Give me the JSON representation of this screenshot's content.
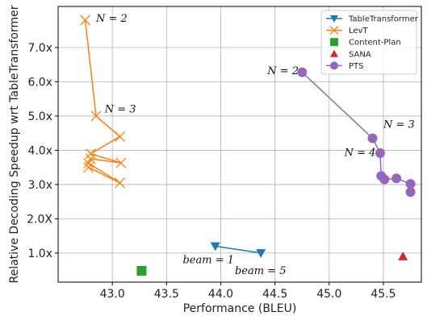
{
  "chart_data": {
    "type": "scatter",
    "xlabel": "Performance (BLEU)",
    "ylabel": "Relative Decoding Speedup wrt TableTransformer",
    "xlim": [
      42.5,
      45.85
    ],
    "ylim": [
      0.15,
      8.2
    ],
    "xticks": [
      {
        "value": 43.0,
        "label": "43.0"
      },
      {
        "value": 43.5,
        "label": "43.5"
      },
      {
        "value": 44.0,
        "label": "44.0"
      },
      {
        "value": 44.5,
        "label": "44.5"
      },
      {
        "value": 45.0,
        "label": "45.0"
      },
      {
        "value": 45.5,
        "label": "45.5"
      }
    ],
    "yticks": [
      {
        "value": 1.0,
        "label": "1.0x"
      },
      {
        "value": 2.0,
        "label": "2.0X"
      },
      {
        "value": 3.0,
        "label": "3.0x"
      },
      {
        "value": 4.0,
        "label": "4.0x"
      },
      {
        "value": 5.0,
        "label": "5.0x"
      },
      {
        "value": 6.0,
        "label": "6.0x"
      },
      {
        "value": 7.0,
        "label": "7.0x"
      }
    ],
    "grid": true,
    "legend_position": "top-right",
    "series": [
      {
        "name": "TableTransformer",
        "marker": "triangle-down",
        "color": "#1f77b4",
        "connected": true,
        "points": [
          [
            43.95,
            1.2
          ],
          [
            44.37,
            1.0
          ]
        ]
      },
      {
        "name": "LevT",
        "marker": "x",
        "color": "#ff7f0e",
        "connected": true,
        "points": [
          [
            42.75,
            7.8
          ],
          [
            42.85,
            5.0
          ],
          [
            43.07,
            4.4
          ],
          [
            42.8,
            3.9
          ],
          [
            43.08,
            3.63
          ],
          [
            42.8,
            3.75
          ],
          [
            42.78,
            3.62
          ],
          [
            43.07,
            3.05
          ],
          [
            42.78,
            3.5
          ]
        ]
      },
      {
        "name": "Content-Plan",
        "marker": "square",
        "color": "#2ca02c",
        "connected": false,
        "points": [
          [
            43.27,
            0.48
          ]
        ]
      },
      {
        "name": "SANA",
        "marker": "triangle-up",
        "color": "#d62728",
        "connected": false,
        "points": [
          [
            45.68,
            0.9
          ]
        ]
      },
      {
        "name": "PTS",
        "marker": "circle",
        "color": "#9467bd",
        "connected": true,
        "points": [
          [
            44.75,
            6.28
          ],
          [
            45.4,
            4.35
          ],
          [
            45.47,
            3.92
          ],
          [
            45.48,
            3.25
          ],
          [
            45.51,
            3.15
          ],
          [
            45.62,
            3.18
          ],
          [
            45.75,
            3.02
          ],
          [
            45.75,
            2.78
          ]
        ]
      }
    ],
    "annotations": [
      {
        "text": "N = 2",
        "x": 42.85,
        "y": 7.75
      },
      {
        "text": "N = 3",
        "x": 42.93,
        "y": 5.1
      },
      {
        "text": "N = 2",
        "x": 44.43,
        "y": 6.22
      },
      {
        "text": "N = 3",
        "x": 45.5,
        "y": 4.66
      },
      {
        "text": "N = 4",
        "x": 45.14,
        "y": 3.83
      },
      {
        "text": "beam = 1",
        "x": 43.65,
        "y": 0.7
      },
      {
        "text": "beam = 5",
        "x": 44.13,
        "y": 0.38
      }
    ]
  }
}
